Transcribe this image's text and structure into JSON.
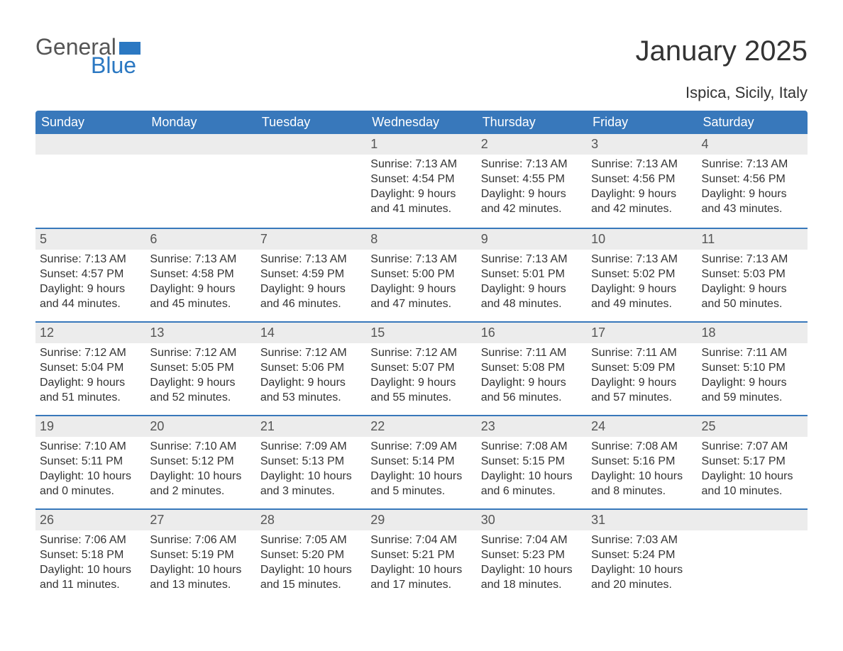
{
  "logo": {
    "textA": "General",
    "textB": "Blue"
  },
  "title": "January 2025",
  "location": "Ispica, Sicily, Italy",
  "colors": {
    "header_bg": "#3878bb",
    "header_text": "#ffffff",
    "daynum_bg": "#ececec",
    "body_text": "#333333",
    "logo_gray": "#555555",
    "logo_blue": "#2b78c2",
    "week_border": "#3878bb",
    "background": "#ffffff"
  },
  "calendar": {
    "type": "table",
    "day_headers": [
      "Sunday",
      "Monday",
      "Tuesday",
      "Wednesday",
      "Thursday",
      "Friday",
      "Saturday"
    ],
    "weeks": [
      [
        null,
        null,
        null,
        {
          "n": "1",
          "sr": "Sunrise: 7:13 AM",
          "ss": "Sunset: 4:54 PM",
          "d1": "Daylight: 9 hours",
          "d2": "and 41 minutes."
        },
        {
          "n": "2",
          "sr": "Sunrise: 7:13 AM",
          "ss": "Sunset: 4:55 PM",
          "d1": "Daylight: 9 hours",
          "d2": "and 42 minutes."
        },
        {
          "n": "3",
          "sr": "Sunrise: 7:13 AM",
          "ss": "Sunset: 4:56 PM",
          "d1": "Daylight: 9 hours",
          "d2": "and 42 minutes."
        },
        {
          "n": "4",
          "sr": "Sunrise: 7:13 AM",
          "ss": "Sunset: 4:56 PM",
          "d1": "Daylight: 9 hours",
          "d2": "and 43 minutes."
        }
      ],
      [
        {
          "n": "5",
          "sr": "Sunrise: 7:13 AM",
          "ss": "Sunset: 4:57 PM",
          "d1": "Daylight: 9 hours",
          "d2": "and 44 minutes."
        },
        {
          "n": "6",
          "sr": "Sunrise: 7:13 AM",
          "ss": "Sunset: 4:58 PM",
          "d1": "Daylight: 9 hours",
          "d2": "and 45 minutes."
        },
        {
          "n": "7",
          "sr": "Sunrise: 7:13 AM",
          "ss": "Sunset: 4:59 PM",
          "d1": "Daylight: 9 hours",
          "d2": "and 46 minutes."
        },
        {
          "n": "8",
          "sr": "Sunrise: 7:13 AM",
          "ss": "Sunset: 5:00 PM",
          "d1": "Daylight: 9 hours",
          "d2": "and 47 minutes."
        },
        {
          "n": "9",
          "sr": "Sunrise: 7:13 AM",
          "ss": "Sunset: 5:01 PM",
          "d1": "Daylight: 9 hours",
          "d2": "and 48 minutes."
        },
        {
          "n": "10",
          "sr": "Sunrise: 7:13 AM",
          "ss": "Sunset: 5:02 PM",
          "d1": "Daylight: 9 hours",
          "d2": "and 49 minutes."
        },
        {
          "n": "11",
          "sr": "Sunrise: 7:13 AM",
          "ss": "Sunset: 5:03 PM",
          "d1": "Daylight: 9 hours",
          "d2": "and 50 minutes."
        }
      ],
      [
        {
          "n": "12",
          "sr": "Sunrise: 7:12 AM",
          "ss": "Sunset: 5:04 PM",
          "d1": "Daylight: 9 hours",
          "d2": "and 51 minutes."
        },
        {
          "n": "13",
          "sr": "Sunrise: 7:12 AM",
          "ss": "Sunset: 5:05 PM",
          "d1": "Daylight: 9 hours",
          "d2": "and 52 minutes."
        },
        {
          "n": "14",
          "sr": "Sunrise: 7:12 AM",
          "ss": "Sunset: 5:06 PM",
          "d1": "Daylight: 9 hours",
          "d2": "and 53 minutes."
        },
        {
          "n": "15",
          "sr": "Sunrise: 7:12 AM",
          "ss": "Sunset: 5:07 PM",
          "d1": "Daylight: 9 hours",
          "d2": "and 55 minutes."
        },
        {
          "n": "16",
          "sr": "Sunrise: 7:11 AM",
          "ss": "Sunset: 5:08 PM",
          "d1": "Daylight: 9 hours",
          "d2": "and 56 minutes."
        },
        {
          "n": "17",
          "sr": "Sunrise: 7:11 AM",
          "ss": "Sunset: 5:09 PM",
          "d1": "Daylight: 9 hours",
          "d2": "and 57 minutes."
        },
        {
          "n": "18",
          "sr": "Sunrise: 7:11 AM",
          "ss": "Sunset: 5:10 PM",
          "d1": "Daylight: 9 hours",
          "d2": "and 59 minutes."
        }
      ],
      [
        {
          "n": "19",
          "sr": "Sunrise: 7:10 AM",
          "ss": "Sunset: 5:11 PM",
          "d1": "Daylight: 10 hours",
          "d2": "and 0 minutes."
        },
        {
          "n": "20",
          "sr": "Sunrise: 7:10 AM",
          "ss": "Sunset: 5:12 PM",
          "d1": "Daylight: 10 hours",
          "d2": "and 2 minutes."
        },
        {
          "n": "21",
          "sr": "Sunrise: 7:09 AM",
          "ss": "Sunset: 5:13 PM",
          "d1": "Daylight: 10 hours",
          "d2": "and 3 minutes."
        },
        {
          "n": "22",
          "sr": "Sunrise: 7:09 AM",
          "ss": "Sunset: 5:14 PM",
          "d1": "Daylight: 10 hours",
          "d2": "and 5 minutes."
        },
        {
          "n": "23",
          "sr": "Sunrise: 7:08 AM",
          "ss": "Sunset: 5:15 PM",
          "d1": "Daylight: 10 hours",
          "d2": "and 6 minutes."
        },
        {
          "n": "24",
          "sr": "Sunrise: 7:08 AM",
          "ss": "Sunset: 5:16 PM",
          "d1": "Daylight: 10 hours",
          "d2": "and 8 minutes."
        },
        {
          "n": "25",
          "sr": "Sunrise: 7:07 AM",
          "ss": "Sunset: 5:17 PM",
          "d1": "Daylight: 10 hours",
          "d2": "and 10 minutes."
        }
      ],
      [
        {
          "n": "26",
          "sr": "Sunrise: 7:06 AM",
          "ss": "Sunset: 5:18 PM",
          "d1": "Daylight: 10 hours",
          "d2": "and 11 minutes."
        },
        {
          "n": "27",
          "sr": "Sunrise: 7:06 AM",
          "ss": "Sunset: 5:19 PM",
          "d1": "Daylight: 10 hours",
          "d2": "and 13 minutes."
        },
        {
          "n": "28",
          "sr": "Sunrise: 7:05 AM",
          "ss": "Sunset: 5:20 PM",
          "d1": "Daylight: 10 hours",
          "d2": "and 15 minutes."
        },
        {
          "n": "29",
          "sr": "Sunrise: 7:04 AM",
          "ss": "Sunset: 5:21 PM",
          "d1": "Daylight: 10 hours",
          "d2": "and 17 minutes."
        },
        {
          "n": "30",
          "sr": "Sunrise: 7:04 AM",
          "ss": "Sunset: 5:23 PM",
          "d1": "Daylight: 10 hours",
          "d2": "and 18 minutes."
        },
        {
          "n": "31",
          "sr": "Sunrise: 7:03 AM",
          "ss": "Sunset: 5:24 PM",
          "d1": "Daylight: 10 hours",
          "d2": "and 20 minutes."
        },
        null
      ]
    ]
  }
}
